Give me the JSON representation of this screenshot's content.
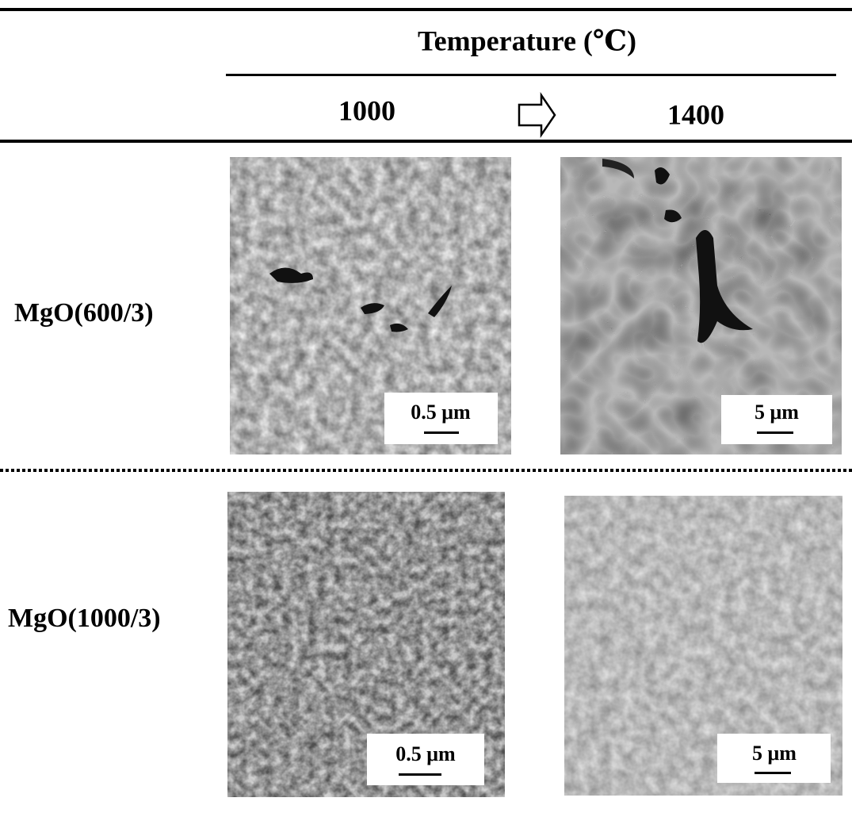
{
  "header": {
    "title": "Temperature (℃)"
  },
  "columns": [
    "1000",
    "1400"
  ],
  "rows": [
    {
      "label": "MgO(600/3)",
      "panels": [
        {
          "scale_bar": "0.5 μm"
        },
        {
          "scale_bar": "5 μm"
        }
      ]
    },
    {
      "label": "MgO(1000/3)",
      "panels": [
        {
          "scale_bar": "0.5 μm"
        },
        {
          "scale_bar": "5 μm"
        }
      ]
    }
  ]
}
